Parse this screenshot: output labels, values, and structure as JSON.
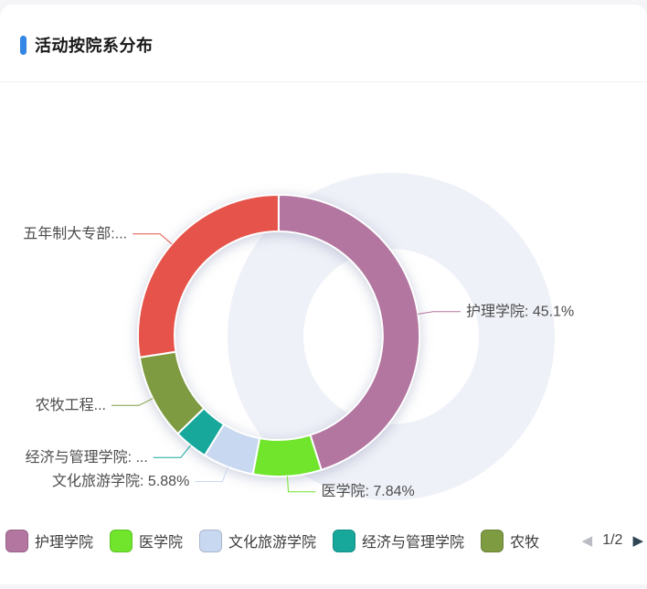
{
  "header": {
    "title": "活动按院系分布"
  },
  "theme": {
    "accent_blue": "#3385e6",
    "card_bg": "#ffffff",
    "page_bg": "#f5f5f7",
    "divider": "#efefef",
    "label_text": "#4d4d4d",
    "legend_text": "#3c3c3c",
    "decoration_fill": "#eff1f8",
    "pager_prev_color": "#b9bcc2",
    "pager_next_color": "#2f4554"
  },
  "chart_data": {
    "type": "pie",
    "subtype": "donut",
    "title": "活动按院系分布",
    "legend_position": "bottom",
    "start_angle_deg": 0,
    "clockwise": true,
    "slices": [
      {
        "name": "护理学院",
        "percent": 45.1,
        "color": "#b276a0",
        "callout_label": "护理学院: 45.1%"
      },
      {
        "name": "医学院",
        "percent": 7.84,
        "color": "#70e52c",
        "callout_label": "医学院: 7.84%"
      },
      {
        "name": "文化旅游学院",
        "percent": 5.88,
        "color": "#c8d8f0",
        "callout_label": "文化旅游学院: 5.88%"
      },
      {
        "name": "经济与管理学院",
        "percent": 3.92,
        "color": "#18a79b",
        "callout_label": "经济与管理学院: ..."
      },
      {
        "name": "农牧工程学院",
        "percent": 9.8,
        "color": "#7e9b42",
        "callout_label": "农牧工程..."
      },
      {
        "name": "五年制大专部",
        "percent": 27.45,
        "color": "#e5534a",
        "callout_label": "五年制大专部:..."
      }
    ]
  },
  "legend": {
    "items": [
      {
        "label": "护理学院",
        "color": "#b276a0"
      },
      {
        "label": "医学院",
        "color": "#70e52c"
      },
      {
        "label": "文化旅游学院",
        "color": "#c8d8f0"
      },
      {
        "label": "经济与管理学院",
        "color": "#18a79b"
      },
      {
        "label": "农牧",
        "color": "#7e9b42"
      }
    ],
    "pager": {
      "prev_icon": "◀",
      "next_icon": "▶",
      "page_text": "1/2",
      "prev_enabled": false,
      "next_enabled": true
    }
  }
}
